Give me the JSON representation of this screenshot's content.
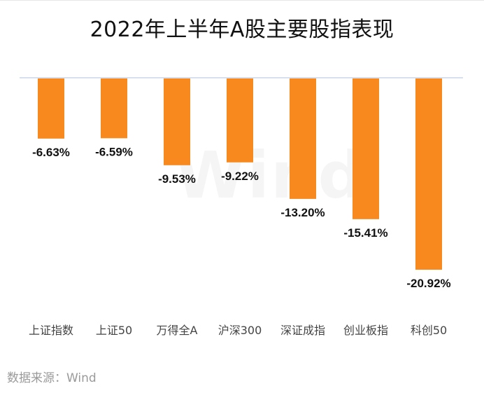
{
  "chart_data": {
    "type": "bar",
    "title": "2022年上半年A股主要股指表现",
    "categories": [
      "上证指数",
      "上证50",
      "万得全A",
      "沪深300",
      "深证成指",
      "创业板指",
      "科创50"
    ],
    "values": [
      -6.63,
      -6.59,
      -9.53,
      -9.22,
      -13.2,
      -15.41,
      -20.92
    ],
    "value_labels": [
      "-6.63%",
      "-6.59%",
      "-9.53%",
      "-9.22%",
      "-13.20%",
      "-15.41%",
      "-20.92%"
    ],
    "xlabel": "",
    "ylabel": "",
    "ylim": [
      -21.3,
      0
    ],
    "grid": false,
    "bar_color": "#F7891E",
    "axis_color": "#c9d6ea"
  },
  "watermark": "Wind",
  "source": "数据来源：Wind"
}
